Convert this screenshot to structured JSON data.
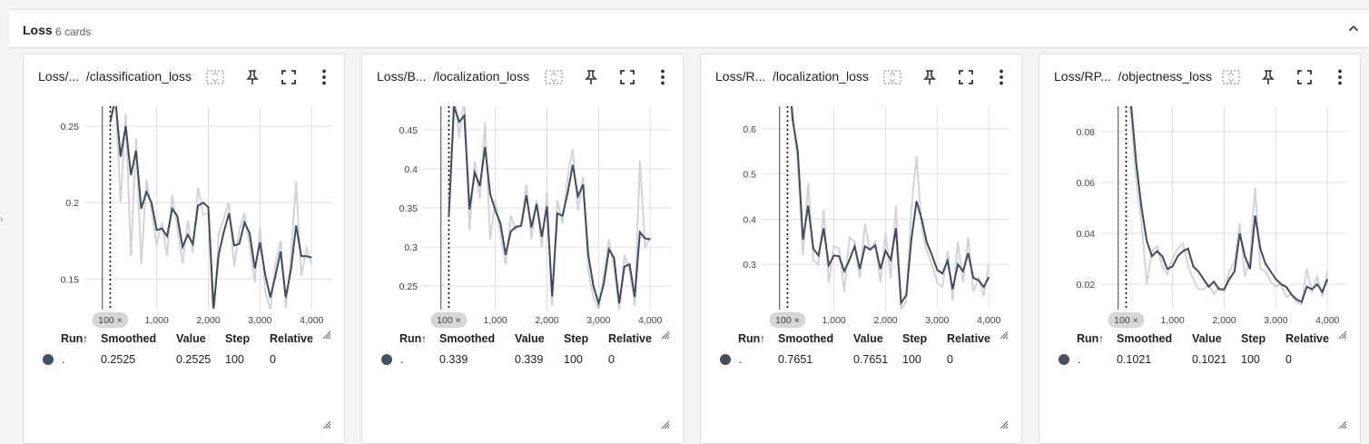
{
  "group": {
    "title": "Loss",
    "count": "6 cards",
    "left_mark": "›"
  },
  "table": {
    "run": "Run",
    "smoothed": "Smoothed",
    "value": "Value",
    "step": "Step",
    "relative": "Relative"
  },
  "colors": {
    "smoothed": "#3f4b5e",
    "raw": "#cfd5df",
    "dot": "#455062"
  },
  "icons": [
    "fit-domain-icon",
    "pin-icon",
    "fullscreen-icon",
    "more-vert-icon",
    "chevron-up-icon",
    "resize-handle-icon"
  ],
  "cards": [
    {
      "title": "Loss/...  /classification_loss",
      "row": {
        "run": ".",
        "smoothed": "0.2525",
        "value": "0.2525",
        "step": "100",
        "relative": "0"
      },
      "chart_data": {
        "type": "line",
        "x_step_label": "100 ×",
        "xticks": [
          "1,000",
          "2,000",
          "3,000",
          "4,000"
        ],
        "yticks": [
          "0.15",
          "0.2",
          "0.25"
        ],
        "xlim": [
          -400,
          4400
        ],
        "ylim": [
          0.13,
          0.263
        ],
        "series": [
          {
            "x": [
              100,
              200,
              300,
              400,
              500,
              600,
              700,
              800,
              900,
              1000,
              1100,
              1200,
              1300,
              1400,
              1500,
              1600,
              1700,
              1800,
              1900,
              2000,
              2100,
              2200,
              2300,
              2400,
              2500,
              2600,
              2700,
              2800,
              2900,
              3000,
              3100,
              3200,
              3300,
              3400,
              3500,
              3600,
              3700,
              3800,
              3900,
              4000
            ],
            "smoothed": [
              0.2525,
              0.268,
              0.23,
              0.25,
              0.218,
              0.234,
              0.196,
              0.207,
              0.2,
              0.182,
              0.183,
              0.178,
              0.196,
              0.191,
              0.171,
              0.179,
              0.173,
              0.198,
              0.2,
              0.197,
              0.131,
              0.166,
              0.181,
              0.193,
              0.172,
              0.173,
              0.187,
              0.18,
              0.157,
              0.174,
              0.153,
              0.138,
              0.152,
              0.168,
              0.138,
              0.156,
              0.185,
              0.165,
              0.165,
              0.164
            ],
            "raw": [
              0.2525,
              0.27,
              0.2,
              0.258,
              0.165,
              0.242,
              0.16,
              0.215,
              0.195,
              0.172,
              0.187,
              0.165,
              0.205,
              0.184,
              0.16,
              0.188,
              0.167,
              0.21,
              0.192,
              0.193,
              0.118,
              0.18,
              0.19,
              0.2,
              0.158,
              0.182,
              0.193,
              0.172,
              0.148,
              0.184,
              0.142,
              0.13,
              0.16,
              0.175,
              0.131,
              0.165,
              0.214,
              0.152,
              0.17,
              0.16
            ]
          }
        ]
      }
    },
    {
      "title": "Loss/B...  /localization_loss",
      "row": {
        "run": ".",
        "smoothed": "0.339",
        "value": "0.339",
        "step": "100",
        "relative": "0"
      },
      "chart_data": {
        "type": "line",
        "x_step_label": "100 ×",
        "xticks": [
          "1,000",
          "2,000",
          "3,000",
          "4,000"
        ],
        "yticks": [
          "0.25",
          "0.3",
          "0.35",
          "0.4",
          "0.45"
        ],
        "xlim": [
          -400,
          4400
        ],
        "ylim": [
          0.22,
          0.48
        ],
        "series": [
          {
            "x": [
              100,
              200,
              300,
              400,
              500,
              600,
              700,
              800,
              900,
              1000,
              1100,
              1200,
              1300,
              1400,
              1500,
              1600,
              1700,
              1800,
              1900,
              2000,
              2100,
              2200,
              2300,
              2400,
              2500,
              2600,
              2700,
              2800,
              2900,
              3000,
              3100,
              3200,
              3300,
              3400,
              3500,
              3600,
              3700,
              3800,
              3900,
              4000
            ],
            "smoothed": [
              0.339,
              0.48,
              0.46,
              0.468,
              0.348,
              0.395,
              0.378,
              0.428,
              0.368,
              0.347,
              0.33,
              0.29,
              0.32,
              0.326,
              0.327,
              0.366,
              0.325,
              0.355,
              0.313,
              0.352,
              0.237,
              0.343,
              0.34,
              0.369,
              0.405,
              0.365,
              0.38,
              0.29,
              0.25,
              0.228,
              0.253,
              0.297,
              0.286,
              0.228,
              0.275,
              0.278,
              0.236,
              0.319,
              0.311,
              0.31
            ],
            "raw": [
              0.339,
              0.5,
              0.44,
              0.49,
              0.322,
              0.41,
              0.362,
              0.46,
              0.31,
              0.36,
              0.316,
              0.278,
              0.34,
              0.322,
              0.33,
              0.38,
              0.31,
              0.36,
              0.3,
              0.37,
              0.225,
              0.36,
              0.33,
              0.39,
              0.425,
              0.346,
              0.39,
              0.27,
              0.236,
              0.22,
              0.265,
              0.31,
              0.274,
              0.22,
              0.29,
              0.27,
              0.225,
              0.41,
              0.3,
              0.312
            ]
          }
        ]
      }
    },
    {
      "title": "Loss/R...  /localization_loss",
      "row": {
        "run": ".",
        "smoothed": "0.7651",
        "value": "0.7651",
        "step": "100",
        "relative": "0"
      },
      "chart_data": {
        "type": "line",
        "x_step_label": "100 ×",
        "xticks": [
          "1,000",
          "2,000",
          "3,000",
          "4,000"
        ],
        "yticks": [
          "0.3",
          "0.4",
          "0.5",
          "0.6"
        ],
        "xlim": [
          -400,
          4400
        ],
        "ylim": [
          0.2,
          0.65
        ],
        "series": [
          {
            "x": [
              100,
              200,
              300,
              400,
              500,
              600,
              700,
              800,
              900,
              1000,
              1100,
              1200,
              1300,
              1400,
              1500,
              1600,
              1700,
              1800,
              1900,
              2000,
              2100,
              2200,
              2300,
              2400,
              2500,
              2600,
              2700,
              2800,
              2900,
              3000,
              3100,
              3200,
              3300,
              3400,
              3500,
              3600,
              3700,
              3800,
              3900,
              4000
            ],
            "smoothed": [
              0.7651,
              0.62,
              0.55,
              0.355,
              0.43,
              0.335,
              0.32,
              0.38,
              0.298,
              0.32,
              0.318,
              0.285,
              0.31,
              0.34,
              0.29,
              0.34,
              0.333,
              0.342,
              0.29,
              0.33,
              0.31,
              0.38,
              0.215,
              0.232,
              0.355,
              0.44,
              0.4,
              0.348,
              0.32,
              0.288,
              0.28,
              0.308,
              0.245,
              0.3,
              0.285,
              0.325,
              0.27,
              0.265,
              0.25,
              0.272
            ],
            "raw": [
              0.7651,
              0.64,
              0.52,
              0.32,
              0.48,
              0.31,
              0.3,
              0.42,
              0.26,
              0.34,
              0.335,
              0.24,
              0.36,
              0.35,
              0.27,
              0.39,
              0.33,
              0.35,
              0.26,
              0.37,
              0.27,
              0.43,
              0.2,
              0.22,
              0.42,
              0.54,
              0.38,
              0.33,
              0.3,
              0.26,
              0.25,
              0.33,
              0.22,
              0.35,
              0.26,
              0.36,
              0.24,
              0.27,
              0.23,
              0.3
            ]
          }
        ]
      }
    },
    {
      "title": "Loss/RP...  /objectness_loss",
      "row": {
        "run": ".",
        "smoothed": "0.1021",
        "value": "0.1021",
        "step": "100",
        "relative": "0"
      },
      "chart_data": {
        "type": "line",
        "x_step_label": "100 ×",
        "xticks": [
          "1,000",
          "2,000",
          "3,000",
          "4,000"
        ],
        "yticks": [
          "0.02",
          "0.04",
          "0.06",
          "0.08"
        ],
        "xlim": [
          -400,
          4400
        ],
        "ylim": [
          0.01,
          0.09
        ],
        "series": [
          {
            "x": [
              100,
              200,
              300,
              400,
              500,
              600,
              700,
              800,
              900,
              1000,
              1100,
              1200,
              1300,
              1400,
              1500,
              1600,
              1700,
              1800,
              1900,
              2000,
              2100,
              2200,
              2300,
              2400,
              2500,
              2600,
              2700,
              2800,
              2900,
              3000,
              3100,
              3200,
              3300,
              3400,
              3500,
              3600,
              3700,
              3800,
              3900,
              4000
            ],
            "smoothed": [
              0.1021,
              0.09,
              0.067,
              0.05,
              0.037,
              0.031,
              0.033,
              0.031,
              0.026,
              0.027,
              0.031,
              0.033,
              0.034,
              0.027,
              0.025,
              0.022,
              0.019,
              0.021,
              0.018,
              0.018,
              0.022,
              0.025,
              0.04,
              0.031,
              0.026,
              0.047,
              0.034,
              0.028,
              0.025,
              0.022,
              0.02,
              0.019,
              0.016,
              0.014,
              0.013,
              0.019,
              0.018,
              0.02,
              0.017,
              0.022
            ],
            "raw": [
              0.1021,
              0.085,
              0.06,
              0.044,
              0.02,
              0.033,
              0.035,
              0.027,
              0.024,
              0.03,
              0.034,
              0.036,
              0.027,
              0.022,
              0.018,
              0.018,
              0.02,
              0.016,
              0.019,
              0.017,
              0.025,
              0.029,
              0.044,
              0.023,
              0.03,
              0.058,
              0.026,
              0.025,
              0.021,
              0.019,
              0.02,
              0.015,
              0.016,
              0.013,
              0.012,
              0.026,
              0.017,
              0.023,
              0.015,
              0.025
            ]
          }
        ]
      }
    }
  ]
}
